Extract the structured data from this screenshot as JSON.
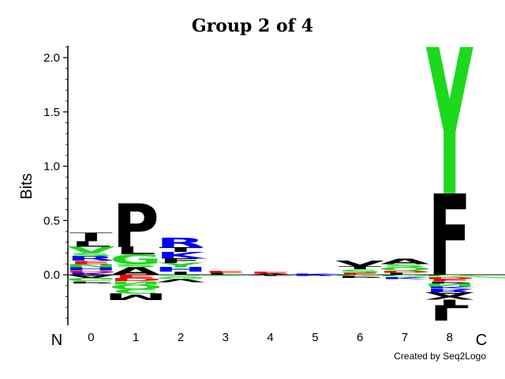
{
  "chart_data": {
    "type": "sequence-logo",
    "title": "Group 2 of 4",
    "ylabel": "Bits",
    "ylim": [
      -0.5,
      2.1
    ],
    "yticks": [
      "0.0",
      "0.5",
      "1.0",
      "1.5",
      "2.0"
    ],
    "xlabel_left": "N",
    "xlabel_right": "C",
    "credit": "Created by Seq2Logo",
    "colors": {
      "black": "#000000",
      "green": "#1ed81e",
      "blue": "#0000ff",
      "red": "#ff0000"
    },
    "positions": [
      {
        "label": "0",
        "positive": [
          {
            "letter": "K",
            "value": 0.02,
            "color": "blue"
          },
          {
            "letter": "D",
            "value": 0.02,
            "color": "red"
          },
          {
            "letter": "H",
            "value": 0.03,
            "color": "blue"
          },
          {
            "letter": "N",
            "value": 0.03,
            "color": "green"
          },
          {
            "letter": "E",
            "value": 0.03,
            "color": "red"
          },
          {
            "letter": "R",
            "value": 0.04,
            "color": "blue"
          },
          {
            "letter": "S",
            "value": 0.03,
            "color": "green"
          },
          {
            "letter": "V",
            "value": 0.06,
            "color": "green"
          },
          {
            "letter": "L",
            "value": 0.05,
            "color": "black"
          },
          {
            "letter": "I",
            "value": 0.05,
            "color": "black"
          },
          {
            "letter": "T",
            "value": 0.03,
            "color": "black"
          }
        ],
        "negative": [
          {
            "letter": "A",
            "value": 0.03,
            "color": "black"
          },
          {
            "letter": "G",
            "value": 0.03,
            "color": "green"
          },
          {
            "letter": "P",
            "value": 0.02,
            "color": "black"
          }
        ]
      },
      {
        "label": "1",
        "positive": [
          {
            "letter": "A",
            "value": 0.07,
            "color": "black"
          },
          {
            "letter": "S",
            "value": 0.03,
            "color": "green"
          },
          {
            "letter": "G",
            "value": 0.09,
            "color": "green"
          },
          {
            "letter": "L",
            "value": 0.07,
            "color": "black"
          },
          {
            "letter": "P",
            "value": 0.4,
            "color": "black"
          }
        ],
        "negative": [
          {
            "letter": "E",
            "value": 0.03,
            "color": "red"
          },
          {
            "letter": "D",
            "value": 0.03,
            "color": "red"
          },
          {
            "letter": "N",
            "value": 0.03,
            "color": "green"
          },
          {
            "letter": "Q",
            "value": 0.04,
            "color": "green"
          },
          {
            "letter": "C",
            "value": 0.04,
            "color": "green"
          },
          {
            "letter": "M",
            "value": 0.06,
            "color": "black"
          }
        ]
      },
      {
        "label": "2",
        "positive": [
          {
            "letter": "I",
            "value": 0.03,
            "color": "black"
          },
          {
            "letter": "H",
            "value": 0.04,
            "color": "blue"
          },
          {
            "letter": "Y",
            "value": 0.04,
            "color": "green"
          },
          {
            "letter": "F",
            "value": 0.04,
            "color": "black"
          },
          {
            "letter": "K",
            "value": 0.06,
            "color": "blue"
          },
          {
            "letter": "T",
            "value": 0.04,
            "color": "black"
          },
          {
            "letter": "R",
            "value": 0.09,
            "color": "blue"
          }
        ],
        "negative": [
          {
            "letter": "S",
            "value": 0.02,
            "color": "green"
          },
          {
            "letter": "G",
            "value": 0.02,
            "color": "green"
          },
          {
            "letter": "V",
            "value": 0.03,
            "color": "black"
          }
        ]
      },
      {
        "label": "3",
        "positive": [
          {
            "letter": "L",
            "value": 0.02,
            "color": "black"
          },
          {
            "letter": "E",
            "value": 0.02,
            "color": "red"
          }
        ],
        "negative": [
          {
            "letter": "S",
            "value": 0.01,
            "color": "green"
          }
        ]
      },
      {
        "label": "4",
        "positive": [
          {
            "letter": "A",
            "value": 0.01,
            "color": "black"
          },
          {
            "letter": "E",
            "value": 0.02,
            "color": "red"
          }
        ],
        "negative": [
          {
            "letter": "T",
            "value": 0.01,
            "color": "black"
          }
        ]
      },
      {
        "label": "5",
        "positive": [
          {
            "letter": "K",
            "value": 0.01,
            "color": "blue"
          }
        ],
        "negative": [
          {
            "letter": "R",
            "value": 0.01,
            "color": "blue"
          }
        ]
      },
      {
        "label": "6",
        "positive": [
          {
            "letter": "E",
            "value": 0.02,
            "color": "red"
          },
          {
            "letter": "S",
            "value": 0.03,
            "color": "green"
          },
          {
            "letter": "T",
            "value": 0.03,
            "color": "black"
          },
          {
            "letter": "V",
            "value": 0.05,
            "color": "black"
          }
        ],
        "negative": [
          {
            "letter": "G",
            "value": 0.01,
            "color": "green"
          },
          {
            "letter": "P",
            "value": 0.02,
            "color": "black"
          }
        ]
      },
      {
        "label": "7",
        "positive": [
          {
            "letter": "L",
            "value": 0.02,
            "color": "black"
          },
          {
            "letter": "D",
            "value": 0.02,
            "color": "red"
          },
          {
            "letter": "Q",
            "value": 0.03,
            "color": "green"
          },
          {
            "letter": "S",
            "value": 0.03,
            "color": "green"
          },
          {
            "letter": "A",
            "value": 0.05,
            "color": "black"
          }
        ],
        "negative": [
          {
            "letter": "G",
            "value": 0.02,
            "color": "green"
          },
          {
            "letter": "K",
            "value": 0.02,
            "color": "blue"
          }
        ]
      },
      {
        "label": "8",
        "positive": [
          {
            "letter": "F",
            "value": 0.75,
            "color": "black"
          },
          {
            "letter": "Y",
            "value": 1.35,
            "color": "green"
          }
        ],
        "negative": [
          {
            "letter": "G",
            "value": 0.02,
            "color": "green"
          },
          {
            "letter": "D",
            "value": 0.02,
            "color": "red"
          },
          {
            "letter": "E",
            "value": 0.02,
            "color": "red"
          },
          {
            "letter": "P",
            "value": 0.02,
            "color": "black"
          },
          {
            "letter": "N",
            "value": 0.03,
            "color": "green"
          },
          {
            "letter": "K",
            "value": 0.02,
            "color": "blue"
          },
          {
            "letter": "R",
            "value": 0.03,
            "color": "blue"
          },
          {
            "letter": "A",
            "value": 0.04,
            "color": "black"
          },
          {
            "letter": "V",
            "value": 0.03,
            "color": "black"
          },
          {
            "letter": "I",
            "value": 0.05,
            "color": "black"
          },
          {
            "letter": "L",
            "value": 0.14,
            "color": "black"
          }
        ]
      }
    ]
  }
}
